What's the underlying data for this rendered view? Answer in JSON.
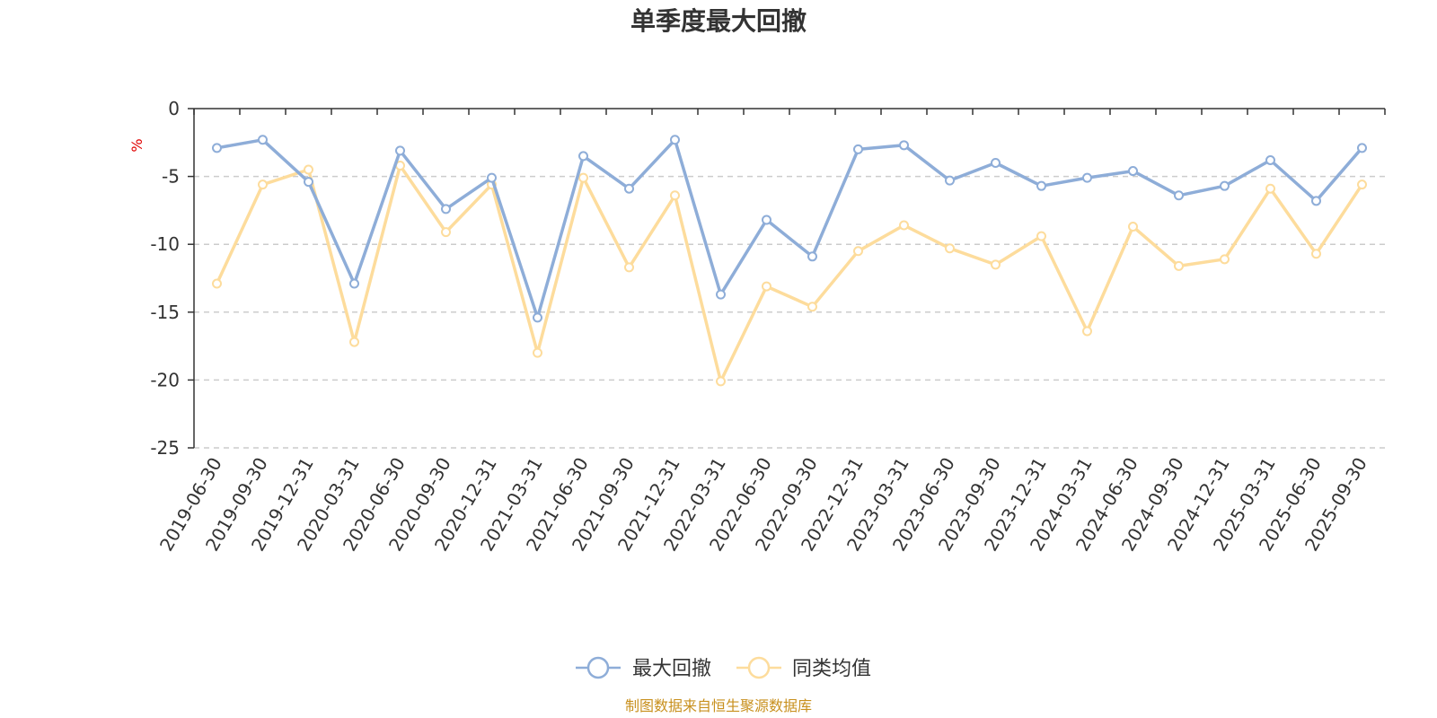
{
  "chart_data": {
    "type": "line",
    "title": "单季度最大回撤",
    "ylabel": "%",
    "xlabel": "",
    "ylim": [
      -25,
      0
    ],
    "yticks": [
      0,
      -5,
      -10,
      -15,
      -20,
      -25
    ],
    "categories": [
      "2019-06-30",
      "2019-09-30",
      "2019-12-31",
      "2020-03-31",
      "2020-06-30",
      "2020-09-30",
      "2020-12-31",
      "2021-03-31",
      "2021-06-30",
      "2021-09-30",
      "2021-12-31",
      "2022-03-31",
      "2022-06-30",
      "2022-09-30",
      "2022-12-31",
      "2023-03-31",
      "2023-06-30",
      "2023-09-30",
      "2023-12-31",
      "2024-03-31",
      "2024-06-30",
      "2024-09-30",
      "2024-12-31",
      "2025-03-31",
      "2025-06-30",
      "2025-09-30"
    ],
    "series": [
      {
        "name": "最大回撤",
        "color": "#8eadd8",
        "values": [
          -2.9,
          -2.3,
          -5.4,
          -12.9,
          -3.1,
          -7.4,
          -5.1,
          -15.4,
          -3.5,
          -5.9,
          -2.3,
          -13.7,
          -8.2,
          -10.9,
          -3.0,
          -2.7,
          -5.3,
          -4.0,
          -5.7,
          -5.1,
          -4.6,
          -6.4,
          -5.7,
          -3.8,
          -6.8,
          -2.9
        ]
      },
      {
        "name": "同类均值",
        "color": "#fddc9c",
        "values": [
          -12.9,
          -5.6,
          -4.5,
          -17.2,
          -4.2,
          -9.1,
          -5.6,
          -18.0,
          -5.1,
          -11.7,
          -6.4,
          -20.1,
          -13.1,
          -14.6,
          -10.5,
          -8.6,
          -10.3,
          -11.5,
          -9.4,
          -16.4,
          -8.7,
          -11.6,
          -11.1,
          -5.9,
          -10.7,
          -5.6
        ]
      }
    ],
    "grid": "dashed-horizontal",
    "legend_position": "bottom-center"
  },
  "source_text": "制图数据来自恒生聚源数据库"
}
